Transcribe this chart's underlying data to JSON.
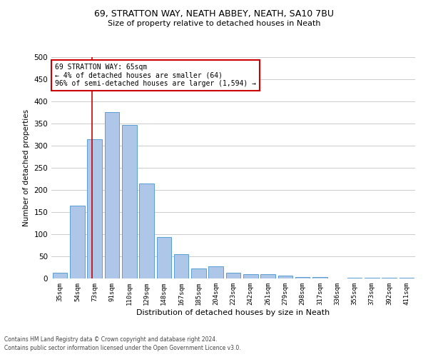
{
  "title1": "69, STRATTON WAY, NEATH ABBEY, NEATH, SA10 7BU",
  "title2": "Size of property relative to detached houses in Neath",
  "xlabel": "Distribution of detached houses by size in Neath",
  "ylabel": "Number of detached properties",
  "categories": [
    "35sqm",
    "54sqm",
    "73sqm",
    "91sqm",
    "110sqm",
    "129sqm",
    "148sqm",
    "167sqm",
    "185sqm",
    "204sqm",
    "223sqm",
    "242sqm",
    "261sqm",
    "279sqm",
    "298sqm",
    "317sqm",
    "336sqm",
    "355sqm",
    "373sqm",
    "392sqm",
    "411sqm"
  ],
  "values": [
    13,
    165,
    314,
    376,
    346,
    215,
    93,
    55,
    23,
    27,
    13,
    10,
    9,
    6,
    4,
    3,
    0,
    2,
    1,
    1,
    2
  ],
  "bar_color": "#aec6e8",
  "bar_edge_color": "#5a9fd4",
  "vline_color": "#cc0000",
  "vline_pos": 1.85,
  "annotation_text": "69 STRATTON WAY: 65sqm\n← 4% of detached houses are smaller (64)\n96% of semi-detached houses are larger (1,594) →",
  "annotation_box_color": "#ffffff",
  "annotation_box_edge_color": "#cc0000",
  "ylim": [
    0,
    500
  ],
  "yticks": [
    0,
    50,
    100,
    150,
    200,
    250,
    300,
    350,
    400,
    450,
    500
  ],
  "footer1": "Contains HM Land Registry data © Crown copyright and database right 2024.",
  "footer2": "Contains public sector information licensed under the Open Government Licence v3.0.",
  "background_color": "#ffffff",
  "grid_color": "#cccccc"
}
